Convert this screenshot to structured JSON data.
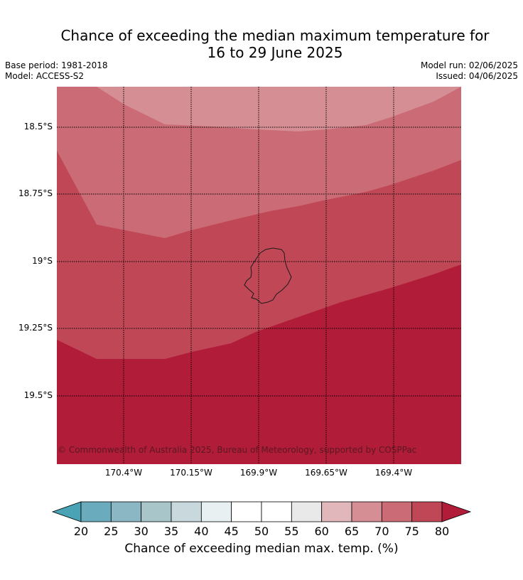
{
  "title_line1": "Chance of exceeding the median maximum temperature for",
  "title_line2": "16 to 29 June 2025",
  "meta": {
    "base_period": "Base period: 1981-2018",
    "model": "Model: ACCESS-S2",
    "model_run": "Model run: 02/06/2025",
    "issued": "Issued: 04/06/2025"
  },
  "map": {
    "lat_labels": [
      "18.5°S",
      "18.75°S",
      "19°S",
      "19.25°S",
      "19.5°S"
    ],
    "lon_labels": [
      "170.4°W",
      "170.15°W",
      "169.9°W",
      "169.65°W",
      "169.4°W"
    ],
    "copyright": "© Commonwealth of Australia 2025, Bureau of Meteorology, supported by COSPPac",
    "region_colors": {
      "65-70": "#d58e94",
      "70-75": "#ca6b75",
      "75-80": "#c04856",
      ">80": "#b11c39"
    }
  },
  "colorbar": {
    "ticks": [
      "20",
      "25",
      "30",
      "35",
      "40",
      "45",
      "50",
      "55",
      "60",
      "65",
      "70",
      "75",
      "80"
    ],
    "colors": [
      "#4aa3b5",
      "#6aacbd",
      "#8ab7c3",
      "#a8c5ca",
      "#c8d8dc",
      "#e8f0f2",
      "#ffffff",
      "#ffffff",
      "#e9e9e9",
      "#e2b7bb",
      "#d58e94",
      "#ca6b75",
      "#c04856",
      "#b11c39"
    ],
    "label": "Chance of exceeding median max. temp. (%)"
  }
}
